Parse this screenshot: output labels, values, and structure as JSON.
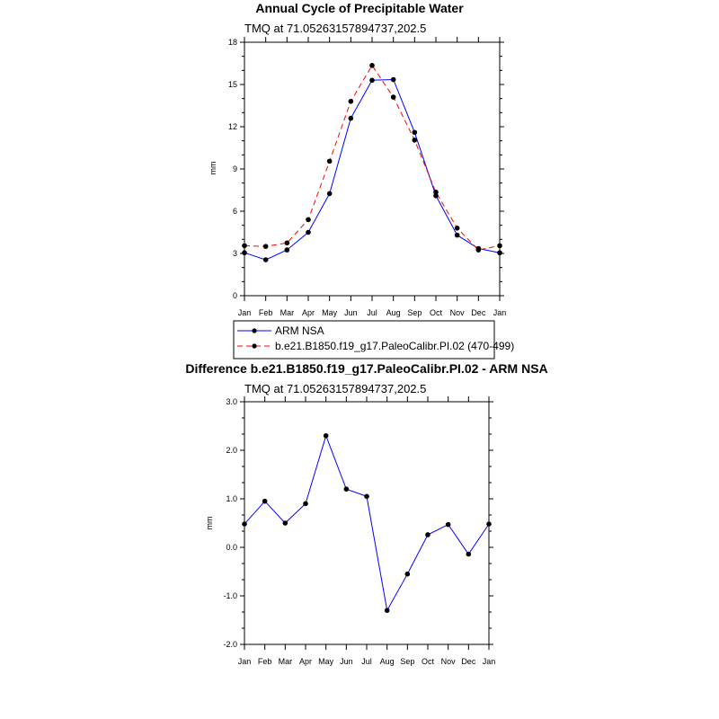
{
  "chart_data": [
    {
      "type": "line",
      "title": "Annual Cycle of Precipitable Water",
      "subtitle": "TMQ at 71.05263157894737,202.5",
      "xlabel": "",
      "ylabel": "mm",
      "categories": [
        "Jan",
        "Feb",
        "Mar",
        "Apr",
        "May",
        "Jun",
        "Jul",
        "Aug",
        "Sep",
        "Oct",
        "Nov",
        "Dec",
        "Jan"
      ],
      "ylim": [
        0,
        18
      ],
      "yticks": [
        0,
        3,
        6,
        9,
        12,
        15,
        18
      ],
      "ytick_labels": [
        "0",
        "3",
        "6",
        "9",
        "12",
        "15",
        "18"
      ],
      "legend_position": "bottom",
      "series": [
        {
          "name": "ARM NSA",
          "color": "#0000ff",
          "style": "solid",
          "values": [
            3.05,
            2.55,
            3.25,
            4.5,
            7.25,
            12.6,
            15.3,
            15.35,
            11.6,
            7.1,
            4.3,
            3.35,
            3.05
          ]
        },
        {
          "name": "b.e21.B1850.f19_g17.PaleoCalibr.PI.02 (470-499)",
          "color": "#ff0000",
          "style": "dashed",
          "values": [
            3.55,
            3.5,
            3.75,
            5.4,
            9.55,
            13.8,
            16.35,
            14.1,
            11.05,
            7.35,
            4.8,
            3.25,
            3.55
          ]
        }
      ]
    },
    {
      "type": "line",
      "title": "Difference b.e21.B1850.f19_g17.PaleoCalibr.PI.02 - ARM NSA",
      "subtitle": "TMQ at 71.05263157894737,202.5",
      "xlabel": "",
      "ylabel": "mm",
      "categories": [
        "Jan",
        "Feb",
        "Mar",
        "Apr",
        "May",
        "Jun",
        "Jul",
        "Aug",
        "Sep",
        "Oct",
        "Nov",
        "Dec",
        "Jan"
      ],
      "ylim": [
        -2.0,
        3.0
      ],
      "yticks": [
        -2.0,
        -1.0,
        0.0,
        1.0,
        2.0,
        3.0
      ],
      "ytick_labels": [
        "-2.0",
        "-1.0",
        "0.0",
        "1.0",
        "2.0",
        "3.0"
      ],
      "series": [
        {
          "name": "Difference",
          "color": "#0000ff",
          "style": "solid",
          "values": [
            0.48,
            0.95,
            0.5,
            0.9,
            2.3,
            1.2,
            1.05,
            -1.3,
            -0.55,
            0.26,
            0.47,
            -0.14,
            0.48
          ]
        }
      ]
    }
  ]
}
